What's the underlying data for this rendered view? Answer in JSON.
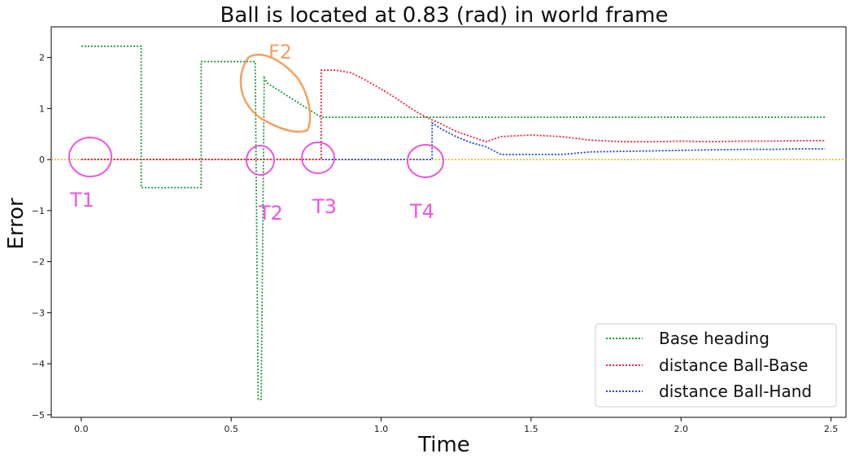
{
  "chart_data": {
    "type": "line",
    "title": "Ball is located at 0.83 (rad) in world frame",
    "xlabel": "Time",
    "ylabel": "Error",
    "xlim": [
      -0.1,
      2.55
    ],
    "ylim": [
      -5.05,
      2.6
    ],
    "xticks": [
      0.0,
      0.5,
      1.0,
      1.5,
      2.0,
      2.5
    ],
    "xtick_labels": [
      "0.0",
      "0.5",
      "1.0",
      "1.5",
      "2.0",
      "2.5"
    ],
    "yticks": [
      -5,
      -4,
      -3,
      -2,
      -1,
      0,
      1,
      2
    ],
    "ytick_labels": [
      "−5",
      "−4",
      "−3",
      "−2",
      "−1",
      "0",
      "1",
      "2"
    ],
    "grid": false,
    "legend_position": "lower-right",
    "reference_line": {
      "y": 0,
      "color": "#e8b020",
      "style": "dotted"
    },
    "series": [
      {
        "name": "Base heading",
        "color": "#1a9a3a",
        "x": [
          0.0,
          0.2,
          0.2,
          0.4,
          0.4,
          0.58,
          0.59,
          0.6,
          0.61,
          0.62,
          0.7,
          0.8,
          0.8,
          2.48
        ],
        "y": [
          2.22,
          2.22,
          -0.55,
          -0.55,
          1.92,
          1.92,
          -4.7,
          -4.7,
          1.6,
          1.5,
          1.2,
          0.83,
          0.83,
          0.83
        ]
      },
      {
        "name": "distance Ball-Base",
        "color": "#ee2244",
        "x": [
          0.0,
          0.8,
          0.8,
          0.85,
          0.9,
          0.95,
          1.0,
          1.05,
          1.1,
          1.15,
          1.2,
          1.25,
          1.3,
          1.35,
          1.4,
          1.5,
          1.6,
          1.7,
          1.8,
          1.9,
          2.0,
          2.1,
          2.2,
          2.3,
          2.4,
          2.48
        ],
        "y": [
          0.0,
          0.0,
          1.75,
          1.75,
          1.7,
          1.55,
          1.38,
          1.2,
          1.0,
          0.83,
          0.7,
          0.55,
          0.45,
          0.35,
          0.45,
          0.48,
          0.45,
          0.38,
          0.35,
          0.35,
          0.36,
          0.35,
          0.36,
          0.36,
          0.37,
          0.37
        ]
      },
      {
        "name": "distance Ball-Hand",
        "color": "#2244dd",
        "x": [
          0.0,
          1.17,
          1.17,
          1.2,
          1.25,
          1.3,
          1.35,
          1.4,
          1.5,
          1.6,
          1.7,
          1.8,
          1.9,
          2.0,
          2.1,
          2.2,
          2.3,
          2.4,
          2.48
        ],
        "y": [
          0.0,
          0.0,
          0.72,
          0.6,
          0.45,
          0.33,
          0.25,
          0.1,
          0.1,
          0.1,
          0.15,
          0.16,
          0.17,
          0.18,
          0.19,
          0.2,
          0.2,
          0.21,
          0.21
        ]
      }
    ],
    "annotations": {
      "t1": "T1",
      "t2": "T2",
      "t3": "T3",
      "t4": "T4",
      "f2": "F2"
    }
  }
}
